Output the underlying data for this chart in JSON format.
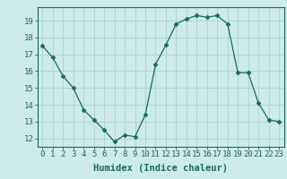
{
  "x": [
    0,
    1,
    2,
    3,
    4,
    5,
    6,
    7,
    8,
    9,
    10,
    11,
    12,
    13,
    14,
    15,
    16,
    17,
    18,
    19,
    20,
    21,
    22,
    23
  ],
  "y": [
    17.5,
    16.8,
    15.7,
    15.0,
    13.7,
    13.1,
    12.5,
    11.8,
    12.2,
    12.1,
    13.4,
    16.4,
    17.55,
    18.8,
    19.1,
    19.3,
    19.2,
    19.3,
    18.8,
    15.9,
    15.9,
    14.1,
    13.1,
    13.0
  ],
  "line_color": "#1a6b5e",
  "marker": "D",
  "marker_size": 2.5,
  "bg_color": "#ceeaea",
  "grid_major_color": "#b0d4d4",
  "grid_minor_color": "#c0e0e0",
  "xlabel": "Humidex (Indice chaleur)",
  "ylim": [
    11.5,
    19.8
  ],
  "xlim": [
    -0.5,
    23.5
  ],
  "yticks": [
    12,
    13,
    14,
    15,
    16,
    17,
    18,
    19
  ],
  "xticks": [
    0,
    1,
    2,
    3,
    4,
    5,
    6,
    7,
    8,
    9,
    10,
    11,
    12,
    13,
    14,
    15,
    16,
    17,
    18,
    19,
    20,
    21,
    22,
    23
  ],
  "tick_label_fontsize": 6.5,
  "xlabel_fontsize": 7.5,
  "font_family": "monospace"
}
